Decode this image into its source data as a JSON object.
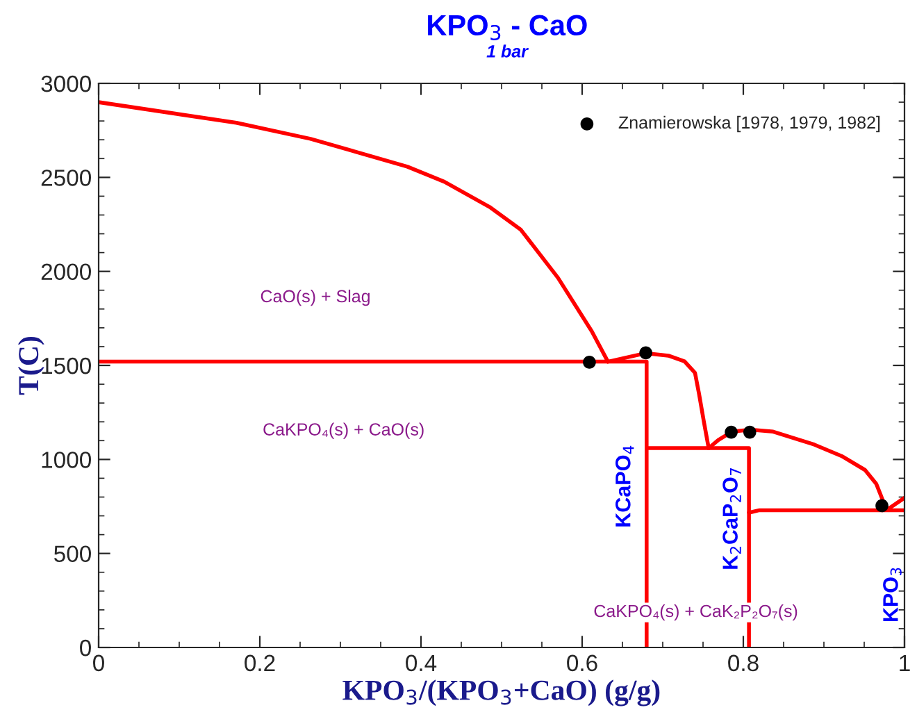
{
  "chart_data": {
    "type": "line",
    "title": "KPO$_{3}$ - CaO",
    "subtitle": "1 bar",
    "xlabel": "KPO$_{3}$/(KPO$_{3}$+CaO) (g/g)",
    "ylabel": "T(C)",
    "xlim": [
      0,
      1
    ],
    "ylim": [
      0,
      3000
    ],
    "xticks": [
      0,
      {
        "value": 0.2,
        "label": "0.2"
      },
      {
        "value": 0.4,
        "label": "0.4"
      },
      {
        "value": 0.6,
        "label": "0.6"
      },
      {
        "value": 0.8,
        "label": "0.8"
      },
      1
    ],
    "yticks": [
      0,
      500,
      1000,
      1500,
      2000,
      2500,
      3000
    ],
    "grid": false,
    "legend": "top right",
    "series": [
      {
        "color": "#ff0000",
        "x": [
          0,
          0.171,
          0.263,
          0.383,
          0.429,
          0.485,
          0.524,
          0.57,
          0.612,
          0.632
        ],
        "values": [
          2900,
          2790,
          2705,
          2557,
          2477,
          2343,
          2221,
          1966,
          1681,
          1520
        ]
      },
      {
        "color": "#ff0000",
        "x": [
          0,
          0.68,
          0.68
        ],
        "values": [
          1520,
          1520,
          0
        ]
      },
      {
        "color": "#ff0000",
        "x": [
          0.632,
          0.679,
          0.707,
          0.727,
          0.74,
          0.745,
          0.751,
          0.757
        ],
        "values": [
          1520,
          1565,
          1552,
          1522,
          1461,
          1350,
          1202,
          1060
        ]
      },
      {
        "color": "#ff0000",
        "x": [
          0.68,
          0.807,
          0.807
        ],
        "values": [
          1060,
          1060,
          0
        ]
      },
      {
        "color": "#ff0000",
        "x": [
          0.757,
          0.769,
          0.786,
          0.809,
          0.837,
          0.888,
          0.922,
          0.951,
          0.965,
          0.973,
          0.979,
          1.0
        ],
        "values": [
          1060,
          1103,
          1148,
          1158,
          1148,
          1079,
          1018,
          944,
          870,
          783,
          734,
          796
        ]
      },
      {
        "color": "#ff0000",
        "x": [
          0.807,
          0.82,
          1.0
        ],
        "values": [
          717,
          730,
          730
        ]
      },
      {
        "type": "scatter",
        "name": "Znamierowska [1978, 1979, 1982]",
        "color": "#000000",
        "marker": "circle",
        "x": [
          0.609,
          0.679,
          0.785,
          0.808,
          0.972
        ],
        "values": [
          1517,
          1567,
          1145,
          1145,
          754
        ]
      }
    ],
    "annotations": [
      "CaO(s) + Slag",
      "CaKPO₄(s) + CaO(s)",
      "CaKPO₄(s) + CaK₂P₂O₇(s)",
      "KCaPO$_{4}$",
      "K$_{2}$CaP$_{2}$O$_{7}$",
      "KPO$_{3}$"
    ]
  }
}
